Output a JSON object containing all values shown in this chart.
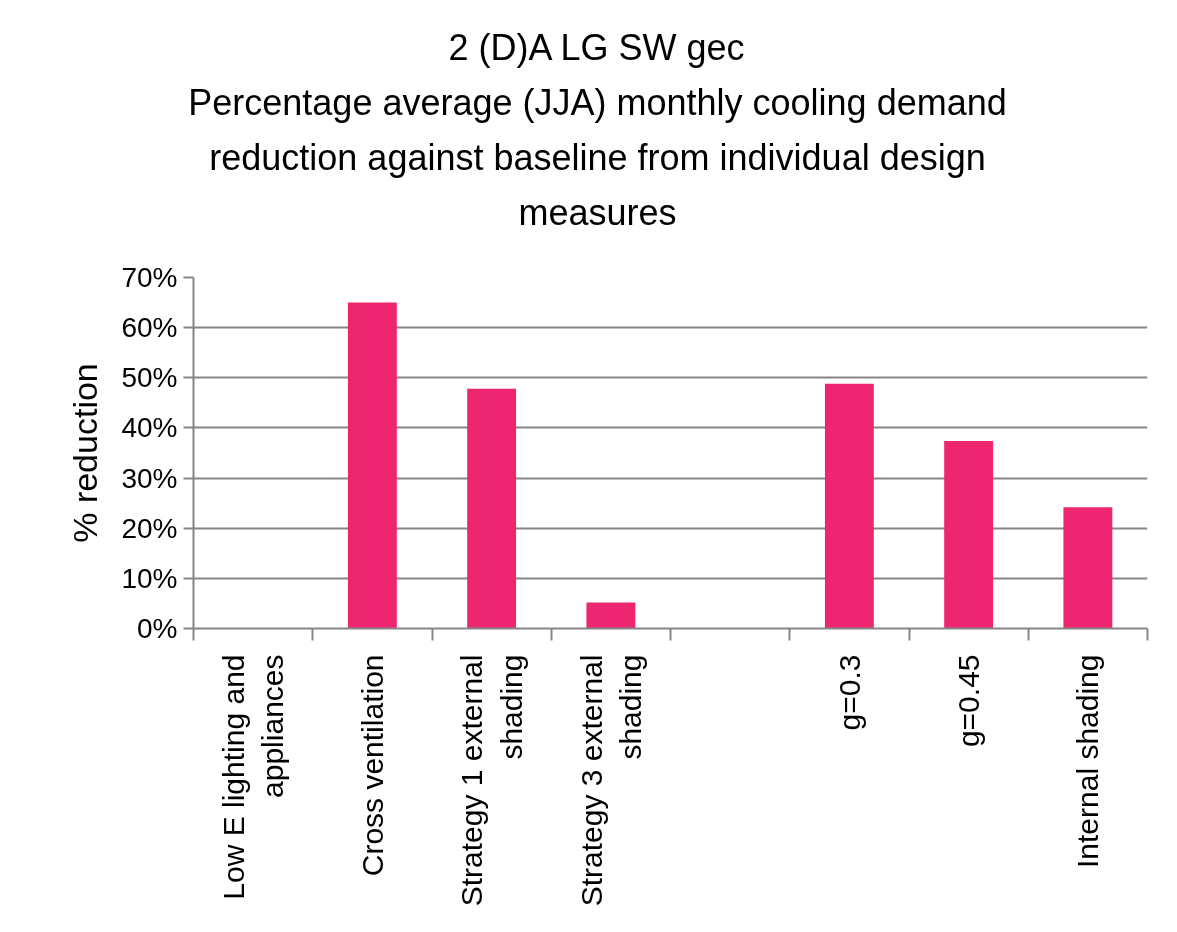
{
  "chart_data": {
    "type": "bar",
    "title": "2 (D)A LG SW gec",
    "subtitle": "Percentage average (JJA) monthly cooling demand reduction against baseline from individual design measures",
    "ylabel": "% reduction",
    "categories": [
      "Low E lighting and appliances",
      "Cross ventilation",
      "Strategy 1 external shading",
      "Strategy 3 external shading",
      null,
      "g=0.3",
      "g=0.45",
      "Internal shading"
    ],
    "values": [
      null,
      65,
      47.8,
      5.2,
      null,
      48.8,
      37.4,
      24.2
    ],
    "color": "#ee2670",
    "ylim": [
      0,
      70
    ],
    "yticks": [
      {
        "value": 0,
        "label": "0%"
      },
      {
        "value": 10,
        "label": "10%"
      },
      {
        "value": 20,
        "label": "20%"
      },
      {
        "value": 30,
        "label": "30%"
      },
      {
        "value": 40,
        "label": "40%"
      },
      {
        "value": 50,
        "label": "50%"
      },
      {
        "value": 60,
        "label": "60%"
      },
      {
        "value": 70,
        "label": "70%"
      }
    ],
    "grid": "y"
  }
}
